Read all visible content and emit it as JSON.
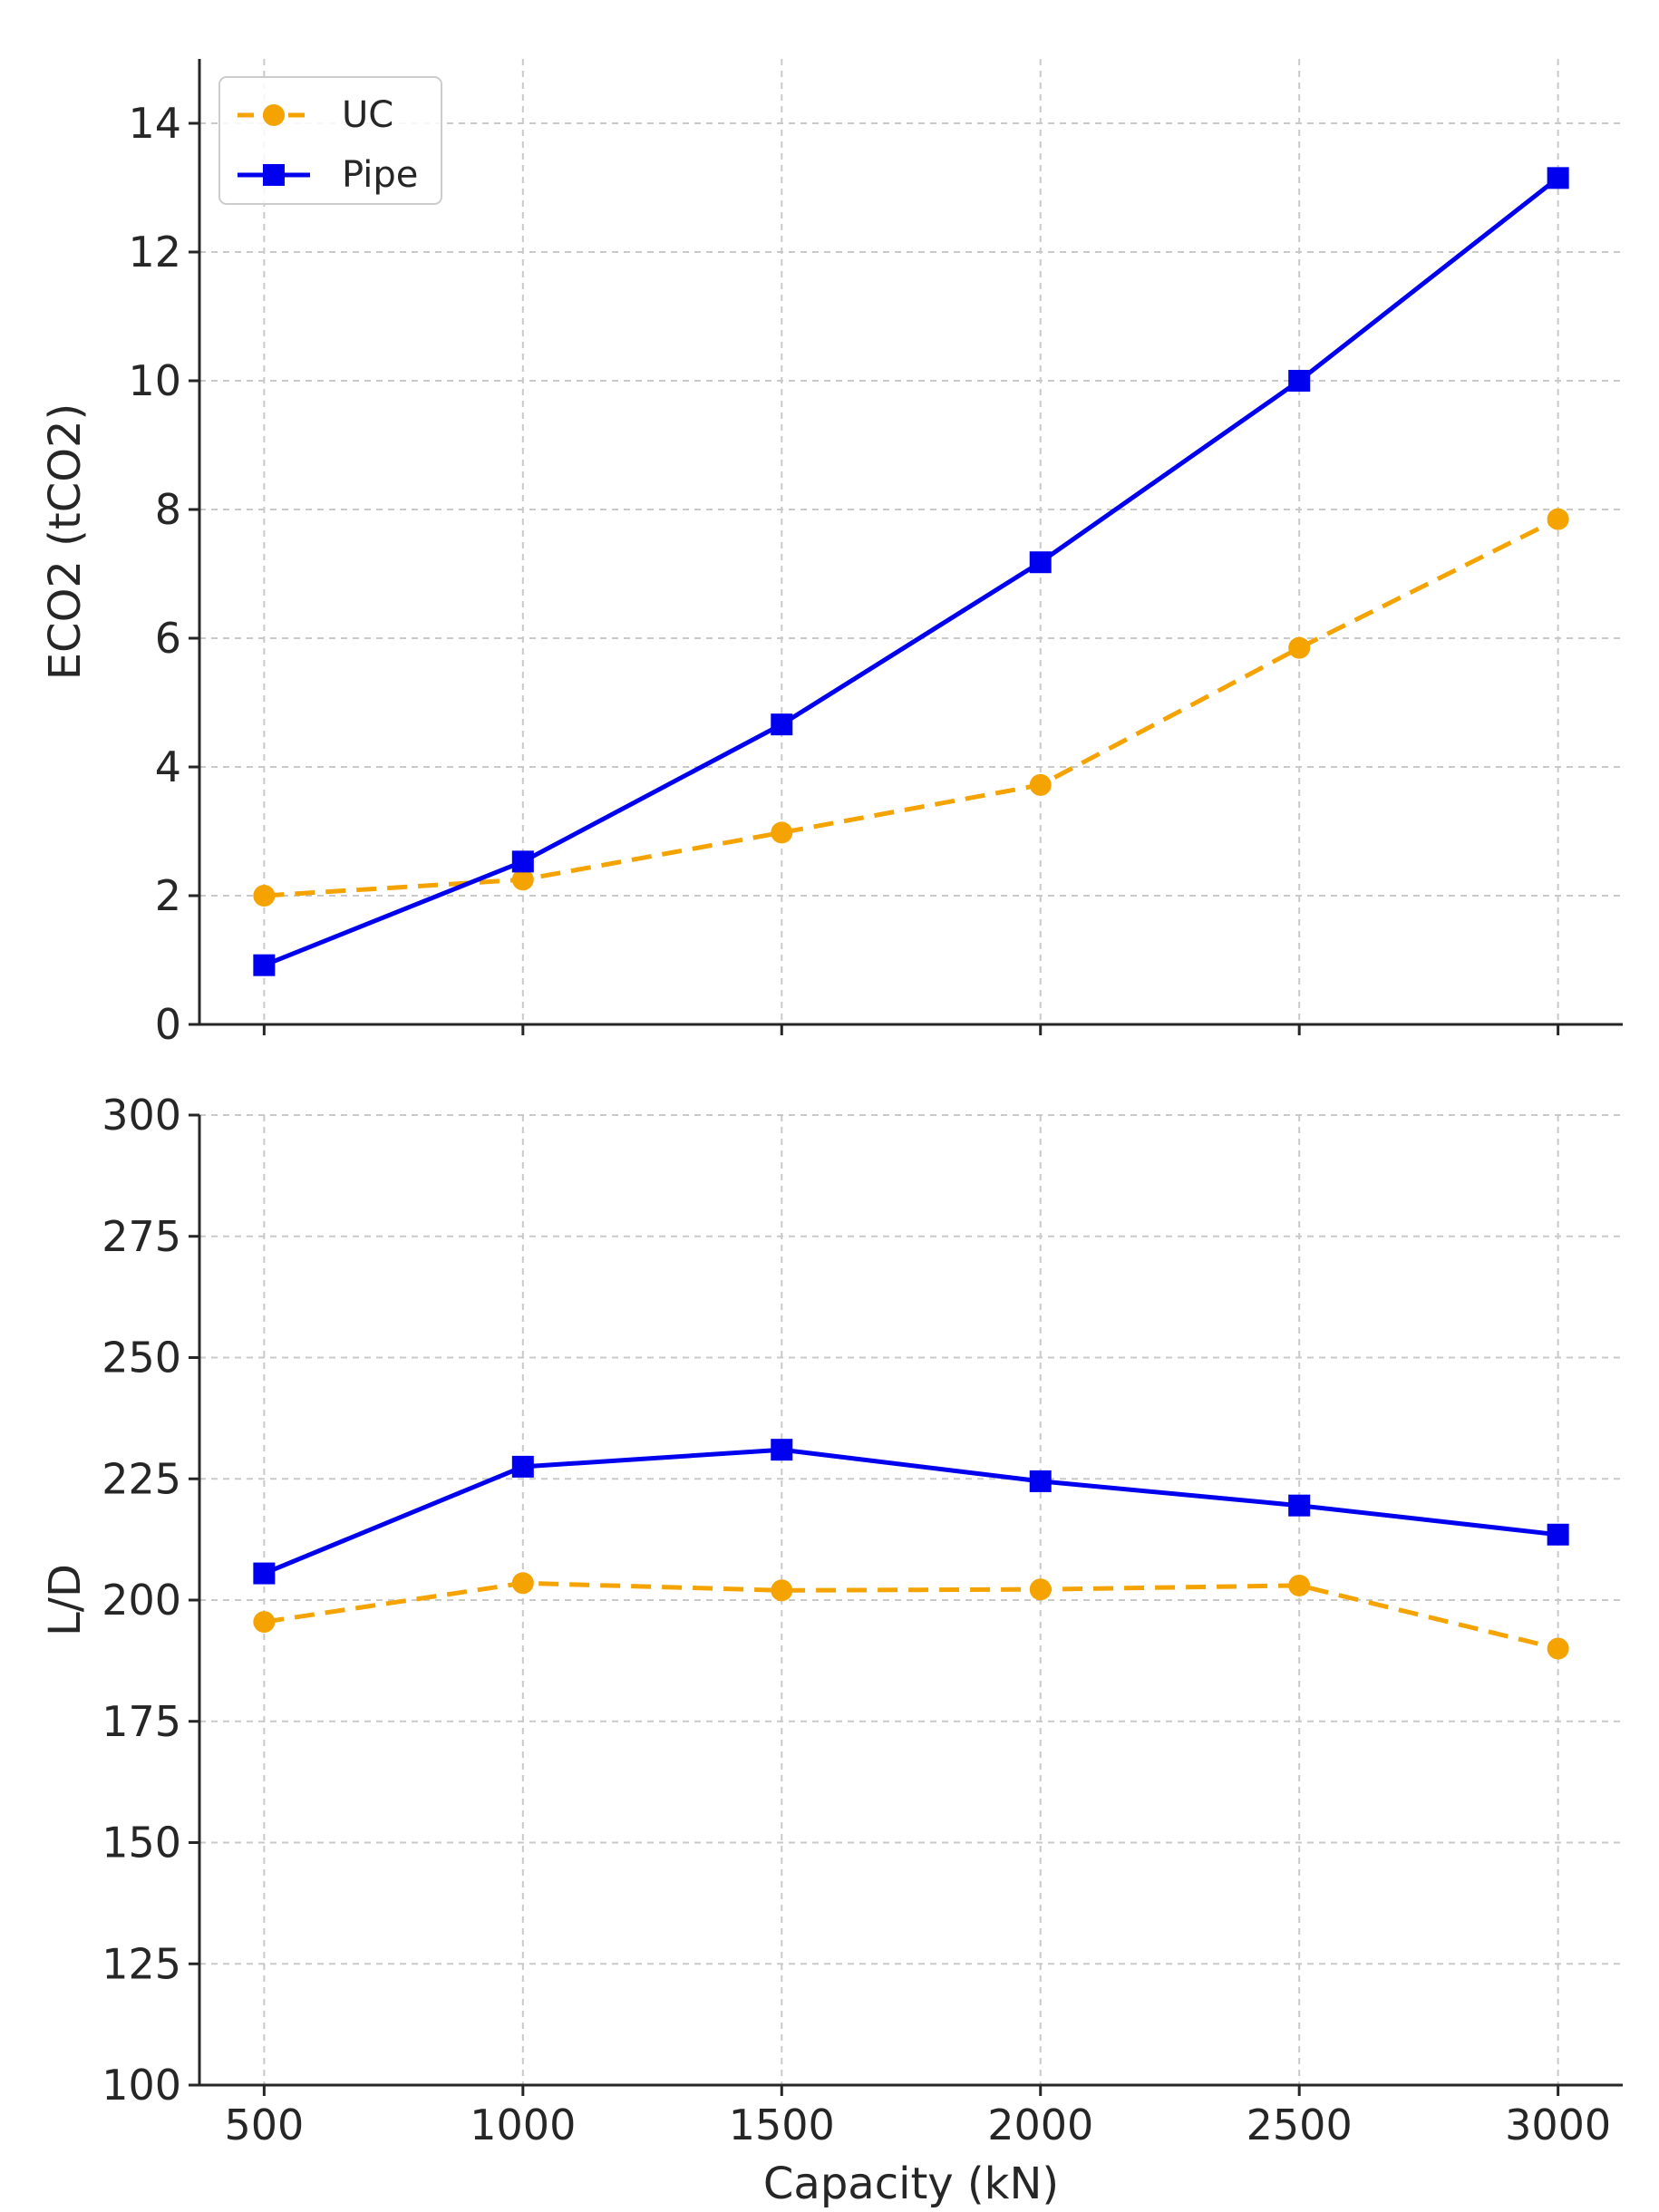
{
  "chart_data": [
    {
      "type": "line",
      "panel": "top",
      "title": "",
      "xlabel": "",
      "ylabel": "ECO2 (tCO2)",
      "x": [
        500,
        1000,
        1500,
        2000,
        2500,
        3000
      ],
      "xlim": [
        375,
        3125
      ],
      "ylim": [
        0,
        15
      ],
      "yticks": [
        0,
        2,
        4,
        6,
        8,
        10,
        12,
        14
      ],
      "xticks": [
        500,
        1000,
        1500,
        2000,
        2500,
        3000
      ],
      "show_xtick_labels": false,
      "grid": true,
      "legend": "upper left",
      "series": [
        {
          "name": "UC",
          "values": [
            2.0,
            2.25,
            2.98,
            3.72,
            5.85,
            7.85
          ],
          "color": "#f4a300",
          "line_style": "dashed",
          "marker": "circle"
        },
        {
          "name": "Pipe",
          "values": [
            0.92,
            2.53,
            4.66,
            7.18,
            10.0,
            13.15
          ],
          "color": "#0000ee",
          "line_style": "solid",
          "marker": "square"
        }
      ]
    },
    {
      "type": "line",
      "panel": "bottom",
      "title": "",
      "xlabel": "Capacity (kN)",
      "ylabel": "L/D",
      "x": [
        500,
        1000,
        1500,
        2000,
        2500,
        3000
      ],
      "xlim": [
        375,
        3125
      ],
      "ylim": [
        100,
        300
      ],
      "yticks": [
        100,
        125,
        150,
        175,
        200,
        225,
        250,
        275,
        300
      ],
      "xticks": [
        500,
        1000,
        1500,
        2000,
        2500,
        3000
      ],
      "show_xtick_labels": true,
      "grid": true,
      "series": [
        {
          "name": "UC",
          "values": [
            195.5,
            203.5,
            202.0,
            202.2,
            203.0,
            190.0
          ],
          "color": "#f4a300",
          "line_style": "dashed",
          "marker": "circle"
        },
        {
          "name": "Pipe",
          "values": [
            205.5,
            227.5,
            231.0,
            224.5,
            219.5,
            213.5
          ],
          "color": "#0000ee",
          "line_style": "solid",
          "marker": "square"
        }
      ]
    }
  ]
}
